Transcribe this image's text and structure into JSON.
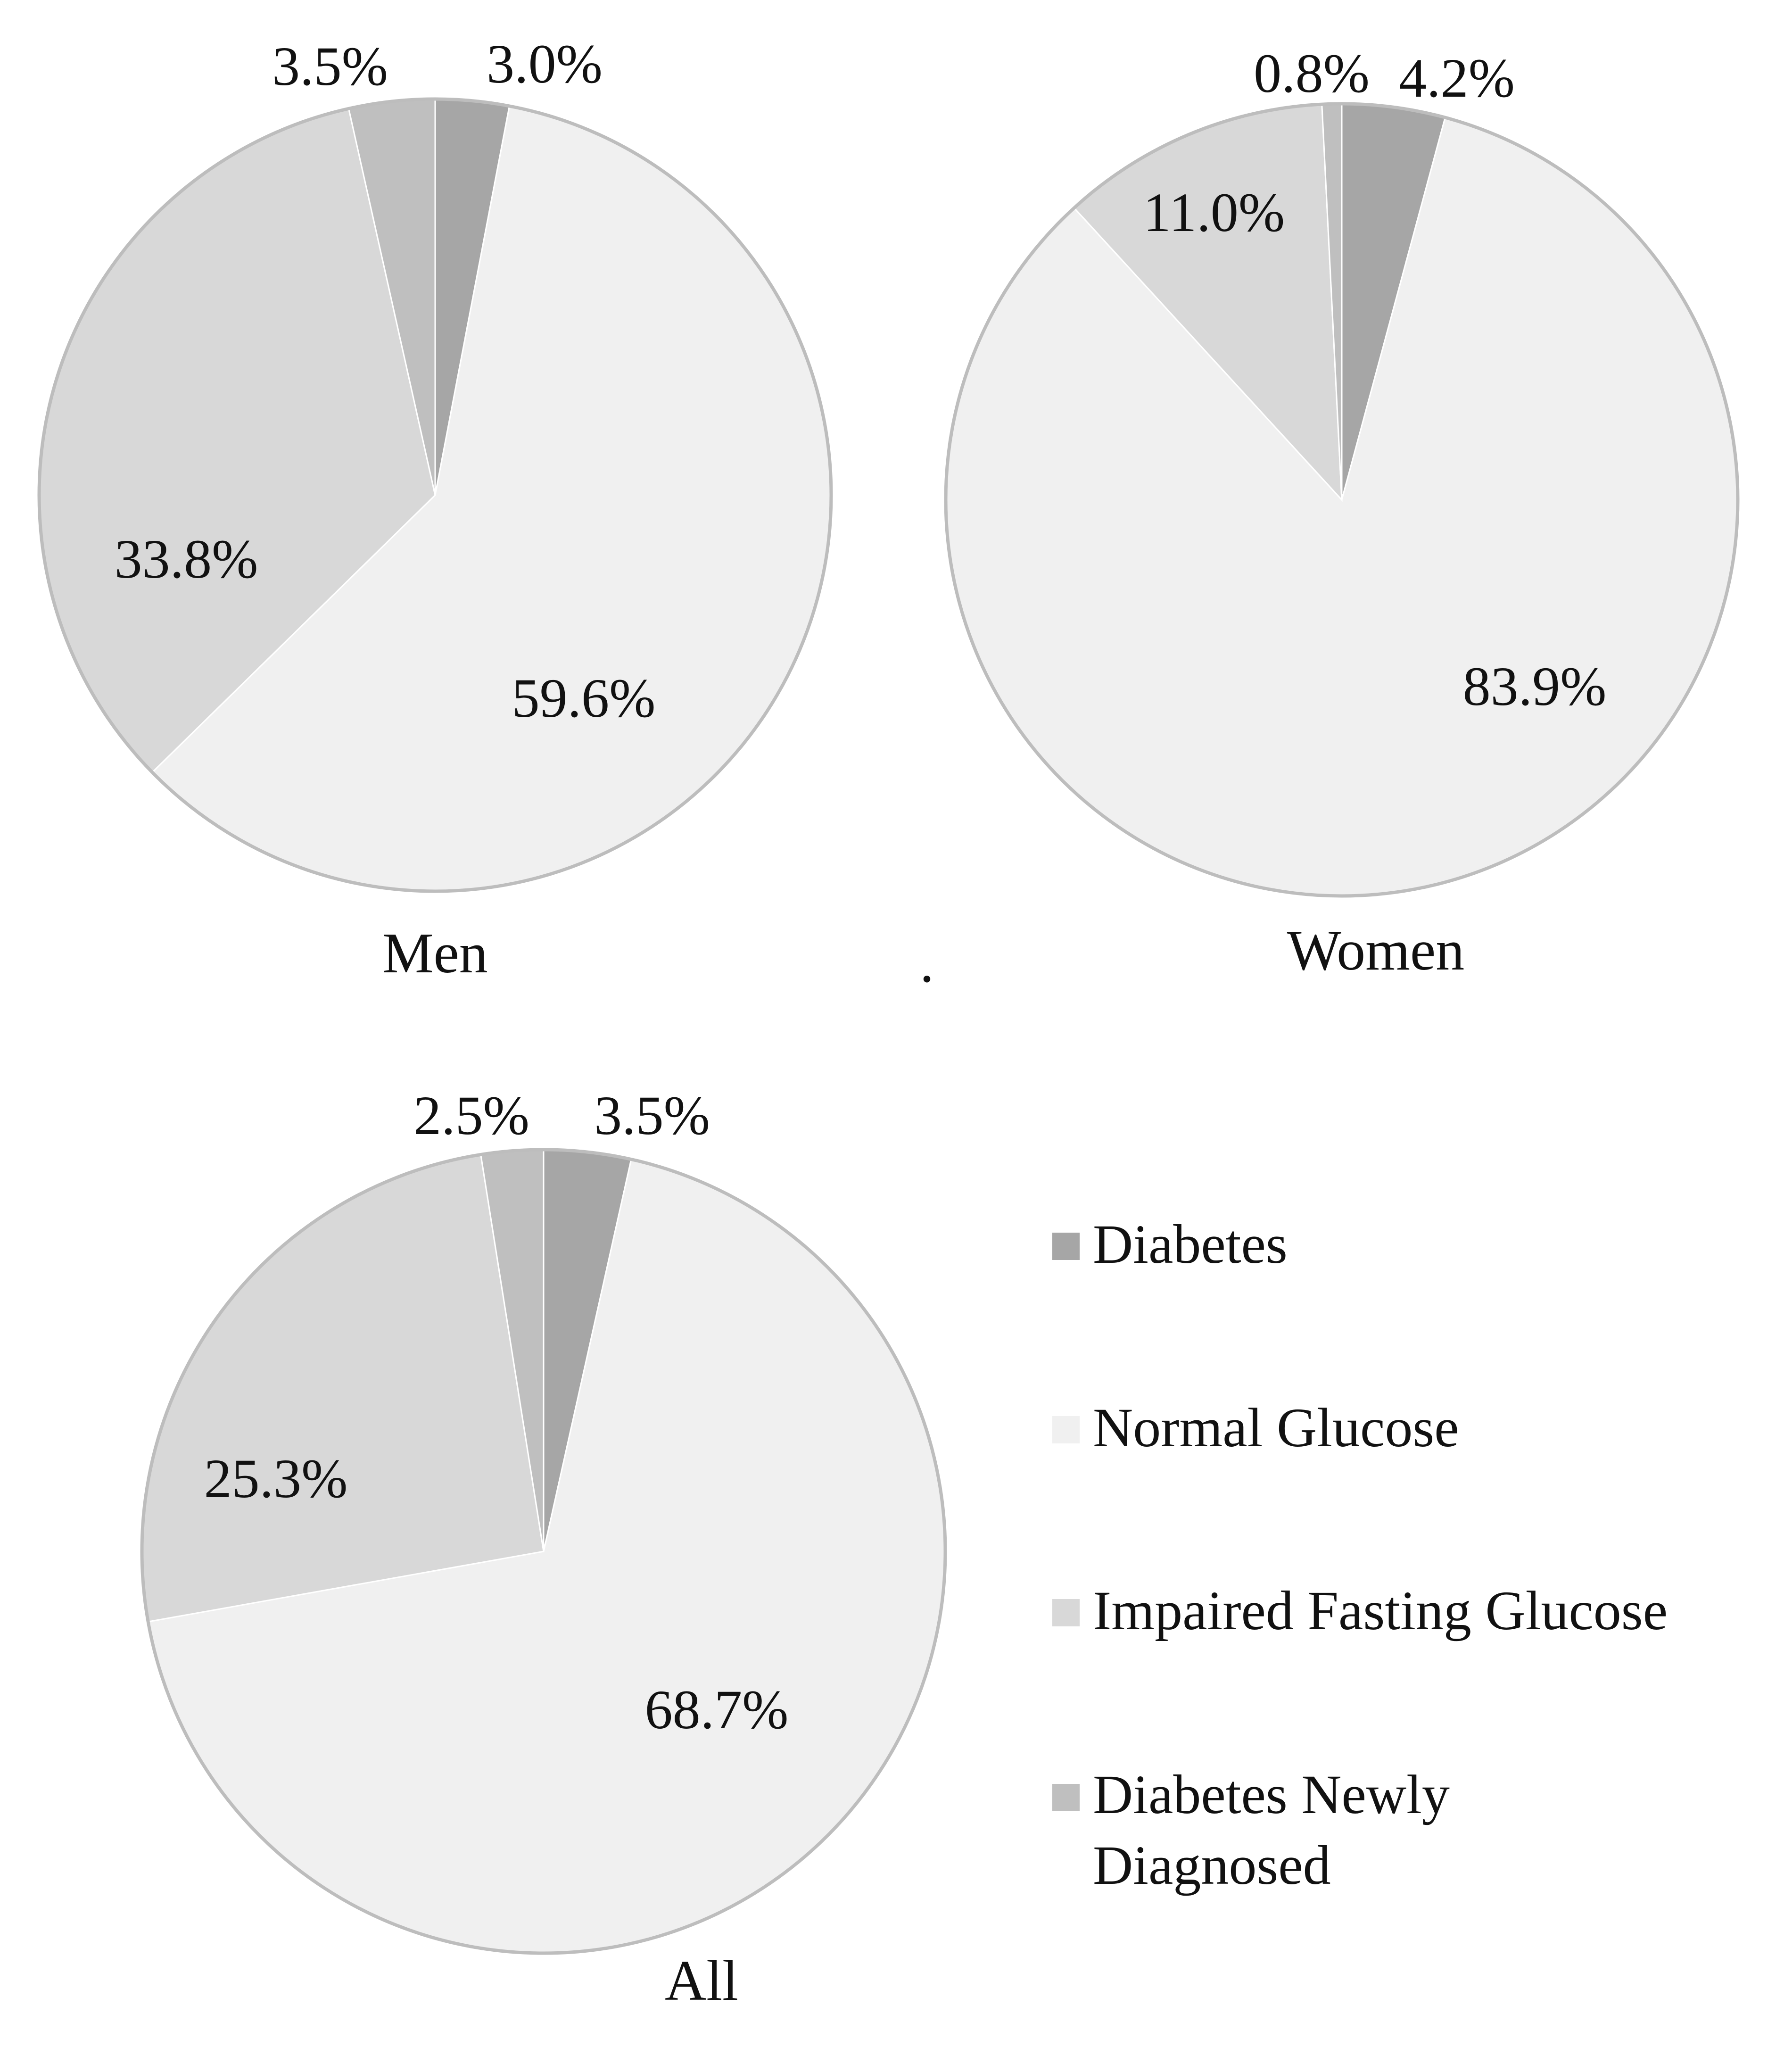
{
  "colors": {
    "Diabetes": "#a6a6a6",
    "Normal Glucose": "#f0f0f0",
    "Impaired Fasting Glucose": "#d8d8d8",
    "Diabetes Newly Diagnosed": "#bfbfbf"
  },
  "legend": {
    "items": [
      "Diabetes",
      "Normal Glucose",
      "Impaired Fasting Glucose",
      "Diabetes Newly Diagnosed"
    ]
  },
  "separator_text": ".",
  "chart_data": [
    {
      "type": "pie",
      "title": "Men",
      "categories": [
        "Diabetes",
        "Normal Glucose",
        "Impaired Fasting Glucose",
        "Diabetes Newly Diagnosed"
      ],
      "values": [
        3.0,
        59.6,
        33.8,
        3.5
      ],
      "labels": [
        "3.0%",
        "59.6%",
        "33.8%",
        "3.5%"
      ]
    },
    {
      "type": "pie",
      "title": "Women",
      "categories": [
        "Diabetes",
        "Normal Glucose",
        "Impaired Fasting Glucose",
        "Diabetes Newly Diagnosed"
      ],
      "values": [
        4.2,
        83.9,
        11.0,
        0.8
      ],
      "labels": [
        "4.2%",
        "83.9%",
        "11.0%",
        "0.8%"
      ]
    },
    {
      "type": "pie",
      "title": "All",
      "categories": [
        "Diabetes",
        "Normal Glucose",
        "Impaired Fasting Glucose",
        "Diabetes Newly Diagnosed"
      ],
      "values": [
        3.5,
        68.7,
        25.3,
        2.5
      ],
      "labels": [
        "3.5%",
        "68.7%",
        "25.3%",
        "2.5%"
      ]
    }
  ]
}
